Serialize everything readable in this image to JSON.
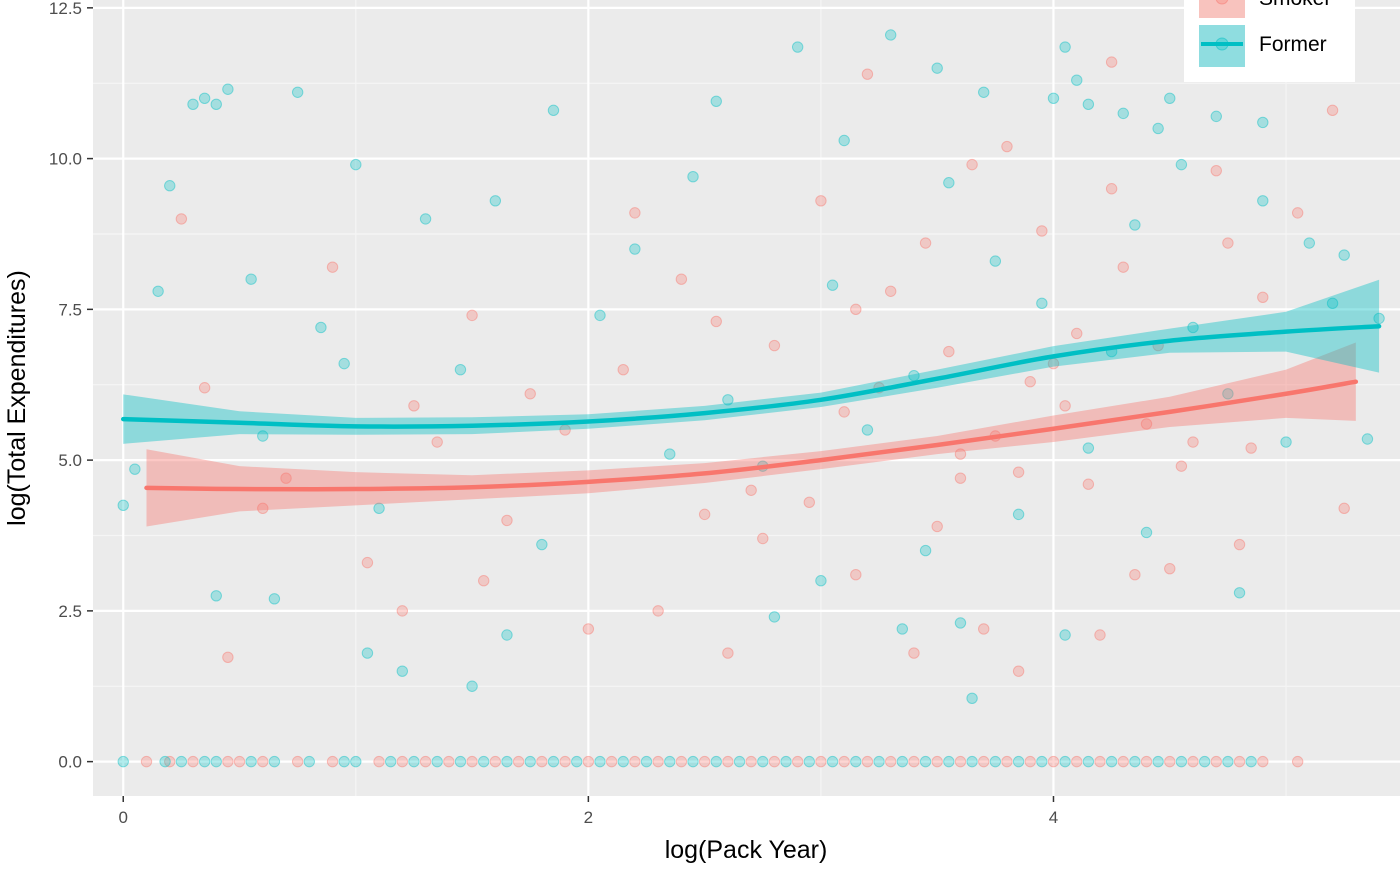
{
  "chart_data": {
    "type": "scatter",
    "title": "",
    "xlabel": "log(Pack Year)",
    "ylabel": "log(Total Expenditures)",
    "xlim": [
      -0.13,
      5.49
    ],
    "ylim": [
      -0.57,
      12.63
    ],
    "x_ticks": [
      0,
      2,
      4
    ],
    "x_tick_labels": [
      "0",
      "2",
      "4"
    ],
    "y_ticks": [
      0,
      2.5,
      5,
      7.5,
      10,
      12.5
    ],
    "y_tick_labels": [
      "0.0",
      "2.5",
      "5.0",
      "7.5",
      "10.0",
      "12.5"
    ],
    "grid": true,
    "legend": {
      "placement": "top-right",
      "entries": [
        "Smoker",
        "Former"
      ]
    },
    "background_color": "#ebebeb",
    "series": [
      {
        "name": "Smoker",
        "color": "#f8766d",
        "points": [
          [
            0.45,
            1.73
          ],
          [
            0.7,
            4.7
          ],
          [
            1.2,
            2.5
          ],
          [
            1.55,
            3.0
          ],
          [
            2.3,
            2.5
          ],
          [
            2.6,
            1.8
          ],
          [
            3.15,
            3.1
          ],
          [
            3.2,
            11.4
          ],
          [
            3.4,
            1.8
          ],
          [
            3.7,
            2.2
          ],
          [
            3.85,
            1.5
          ],
          [
            4.2,
            2.1
          ],
          [
            4.25,
            11.6
          ],
          [
            4.35,
            3.1
          ],
          [
            4.5,
            3.2
          ],
          [
            4.8,
            3.6
          ],
          [
            5.2,
            10.8
          ],
          [
            5.25,
            4.2
          ],
          [
            4.85,
            5.2
          ],
          [
            5.05,
            9.1
          ],
          [
            0.25,
            9.0
          ],
          [
            0.6,
            4.2
          ],
          [
            1.05,
            3.3
          ],
          [
            1.35,
            5.3
          ],
          [
            2.0,
            2.2
          ],
          [
            2.2,
            9.1
          ],
          [
            2.5,
            4.1
          ],
          [
            2.7,
            4.5
          ],
          [
            3.0,
            9.3
          ],
          [
            3.3,
            7.8
          ],
          [
            3.55,
            6.8
          ],
          [
            3.6,
            4.7
          ],
          [
            3.9,
            6.3
          ],
          [
            4.05,
            5.9
          ],
          [
            4.3,
            8.2
          ],
          [
            4.6,
            5.3
          ],
          [
            4.9,
            7.7
          ],
          [
            1.75,
            6.1
          ],
          [
            1.9,
            5.5
          ],
          [
            2.8,
            6.9
          ],
          [
            3.45,
            8.6
          ],
          [
            3.75,
            5.4
          ],
          [
            4.15,
            4.6
          ],
          [
            4.45,
            6.9
          ],
          [
            4.7,
            9.8
          ],
          [
            0.9,
            8.2
          ],
          [
            1.5,
            7.4
          ],
          [
            2.4,
            8.0
          ],
          [
            3.1,
            5.8
          ],
          [
            3.65,
            9.9
          ],
          [
            3.95,
            8.8
          ],
          [
            4.1,
            7.1
          ],
          [
            4.55,
            4.9
          ],
          [
            2.95,
            4.3
          ],
          [
            2.15,
            6.5
          ],
          [
            1.25,
            5.9
          ],
          [
            0.35,
            6.2
          ],
          [
            3.5,
            3.9
          ],
          [
            3.8,
            10.2
          ],
          [
            4.4,
            5.6
          ],
          [
            1.65,
            4.0
          ],
          [
            2.55,
            7.3
          ],
          [
            3.25,
            6.2
          ],
          [
            3.85,
            4.8
          ],
          [
            4.0,
            6.6
          ],
          [
            2.75,
            3.7
          ],
          [
            3.15,
            7.5
          ],
          [
            3.6,
            5.1
          ],
          [
            4.25,
            9.5
          ],
          [
            4.75,
            8.6
          ]
        ],
        "zero_points": [
          0.1,
          0.2,
          0.3,
          0.45,
          0.5,
          0.6,
          0.75,
          0.9,
          1.1,
          1.2,
          1.3,
          1.4,
          1.5,
          1.6,
          1.7,
          1.8,
          1.9,
          2.0,
          2.1,
          2.2,
          2.3,
          2.4,
          2.5,
          2.6,
          2.7,
          2.8,
          2.9,
          3.0,
          3.1,
          3.2,
          3.3,
          3.4,
          3.5,
          3.6,
          3.7,
          3.8,
          3.9,
          4.0,
          4.1,
          4.2,
          4.3,
          4.4,
          4.5,
          4.6,
          4.7,
          4.8,
          4.9,
          5.05
        ],
        "smooth": {
          "x": [
            0.1,
            0.5,
            1.0,
            1.5,
            2.0,
            2.5,
            3.0,
            3.5,
            4.0,
            4.5,
            5.0,
            5.3
          ],
          "y": [
            4.54,
            4.52,
            4.52,
            4.55,
            4.64,
            4.78,
            5.0,
            5.25,
            5.52,
            5.8,
            6.1,
            6.3
          ],
          "ci_lower": [
            3.9,
            4.15,
            4.25,
            4.35,
            4.45,
            4.62,
            4.85,
            5.1,
            5.3,
            5.55,
            5.7,
            5.65
          ],
          "ci_upper": [
            5.18,
            4.9,
            4.8,
            4.75,
            4.83,
            4.95,
            5.15,
            5.4,
            5.74,
            6.05,
            6.5,
            6.95
          ]
        }
      },
      {
        "name": "Former",
        "color": "#00bfc4",
        "points": [
          [
            0.0,
            4.25
          ],
          [
            0.05,
            4.85
          ],
          [
            0.3,
            10.9
          ],
          [
            0.35,
            11.0
          ],
          [
            0.4,
            10.9
          ],
          [
            0.45,
            11.15
          ],
          [
            0.75,
            11.1
          ],
          [
            0.2,
            9.55
          ],
          [
            0.4,
            2.75
          ],
          [
            0.65,
            2.7
          ],
          [
            1.0,
            9.9
          ],
          [
            1.05,
            1.8
          ],
          [
            1.2,
            1.5
          ],
          [
            1.5,
            1.25
          ],
          [
            1.65,
            2.1
          ],
          [
            1.85,
            10.8
          ],
          [
            2.55,
            10.95
          ],
          [
            2.8,
            2.4
          ],
          [
            3.3,
            12.05
          ],
          [
            3.35,
            2.2
          ],
          [
            3.5,
            11.5
          ],
          [
            3.6,
            2.3
          ],
          [
            3.65,
            1.05
          ],
          [
            3.7,
            11.1
          ],
          [
            4.0,
            11.0
          ],
          [
            4.05,
            2.1
          ],
          [
            4.05,
            11.85
          ],
          [
            4.1,
            11.3
          ],
          [
            4.15,
            10.9
          ],
          [
            4.3,
            10.75
          ],
          [
            4.45,
            10.5
          ],
          [
            4.5,
            11.0
          ],
          [
            4.7,
            10.7
          ],
          [
            4.9,
            10.6
          ],
          [
            4.8,
            2.8
          ],
          [
            4.9,
            9.3
          ],
          [
            5.1,
            8.6
          ],
          [
            5.2,
            7.6
          ],
          [
            5.25,
            8.4
          ],
          [
            5.4,
            7.35
          ],
          [
            5.35,
            5.35
          ],
          [
            5.0,
            5.3
          ],
          [
            2.9,
            11.85
          ],
          [
            3.1,
            10.3
          ],
          [
            1.3,
            9.0
          ],
          [
            0.55,
            8.0
          ],
          [
            0.85,
            7.2
          ],
          [
            1.45,
            6.5
          ],
          [
            2.05,
            7.4
          ],
          [
            2.35,
            5.1
          ],
          [
            2.6,
            6.0
          ],
          [
            3.05,
            7.9
          ],
          [
            3.4,
            6.4
          ],
          [
            3.75,
            8.3
          ],
          [
            3.95,
            7.6
          ],
          [
            4.25,
            6.8
          ],
          [
            4.35,
            8.9
          ],
          [
            4.6,
            7.2
          ],
          [
            4.75,
            6.1
          ],
          [
            0.15,
            7.8
          ],
          [
            0.6,
            5.4
          ],
          [
            1.1,
            4.2
          ],
          [
            1.8,
            3.6
          ],
          [
            2.2,
            8.5
          ],
          [
            2.75,
            4.9
          ],
          [
            3.2,
            5.5
          ],
          [
            3.55,
            9.6
          ],
          [
            3.85,
            4.1
          ],
          [
            4.15,
            5.2
          ],
          [
            4.55,
            9.9
          ],
          [
            1.6,
            9.3
          ],
          [
            0.95,
            6.6
          ],
          [
            2.45,
            9.7
          ],
          [
            3.0,
            3.0
          ],
          [
            3.45,
            3.5
          ],
          [
            4.4,
            3.8
          ]
        ],
        "zero_points": [
          0.0,
          0.18,
          0.25,
          0.35,
          0.4,
          0.55,
          0.65,
          0.8,
          0.95,
          1.0,
          1.15,
          1.25,
          1.35,
          1.45,
          1.55,
          1.65,
          1.75,
          1.85,
          1.95,
          2.05,
          2.15,
          2.25,
          2.35,
          2.45,
          2.55,
          2.65,
          2.75,
          2.85,
          2.95,
          3.05,
          3.15,
          3.25,
          3.35,
          3.45,
          3.55,
          3.65,
          3.75,
          3.85,
          3.95,
          4.05,
          4.15,
          4.25,
          4.35,
          4.45,
          4.55,
          4.65,
          4.75,
          4.85
        ],
        "smooth": {
          "x": [
            0.0,
            0.5,
            1.0,
            1.5,
            2.0,
            2.5,
            3.0,
            3.5,
            4.0,
            4.5,
            5.0,
            5.4
          ],
          "y": [
            5.68,
            5.62,
            5.56,
            5.57,
            5.64,
            5.78,
            6.0,
            6.35,
            6.72,
            6.98,
            7.13,
            7.22
          ],
          "ci_lower": [
            5.27,
            5.43,
            5.42,
            5.43,
            5.52,
            5.66,
            5.88,
            6.2,
            6.55,
            6.78,
            6.8,
            6.45
          ],
          "ci_upper": [
            6.09,
            5.81,
            5.7,
            5.71,
            5.76,
            5.9,
            6.12,
            6.5,
            6.89,
            7.18,
            7.46,
            7.99
          ]
        }
      }
    ]
  }
}
